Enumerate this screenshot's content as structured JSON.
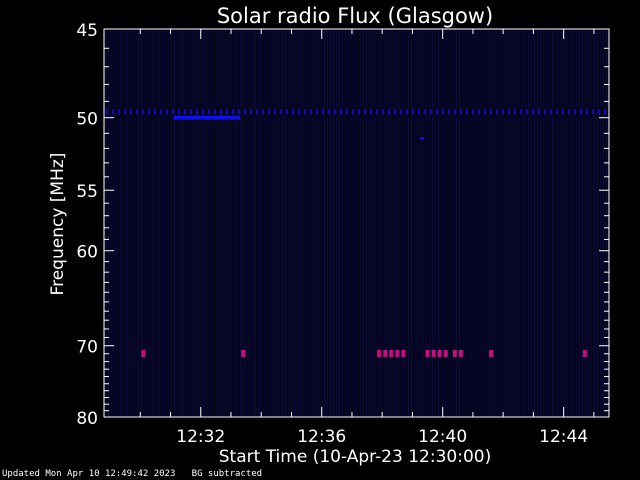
{
  "footer": {
    "updated": "Updated Mon Apr 10 12:49:42 2023",
    "note": "BG subtracted"
  },
  "colors": {
    "background": "#000000",
    "plot_bg": "#050522",
    "axis": "#ffffff",
    "blue_band": "#1010e8",
    "magenta_burst": "#c01080"
  },
  "chart_data": {
    "type": "heatmap",
    "title": "Solar radio Flux (Glasgow)",
    "xlabel": "Start Time (10-Apr-23 12:30:00)",
    "ylabel": "Frequency [MHz]",
    "x_unit": "minutes after 12:30:00",
    "xlim": [
      -1.2,
      15.5
    ],
    "ylim_mhz": [
      45,
      80
    ],
    "y_scale": "reciprocal",
    "x_ticks": [
      {
        "value": 2,
        "label": "12:32"
      },
      {
        "value": 6,
        "label": "12:36"
      },
      {
        "value": 10,
        "label": "12:40"
      },
      {
        "value": 14,
        "label": "12:44"
      }
    ],
    "y_ticks": [
      {
        "value": 45,
        "label": "45"
      },
      {
        "value": 50,
        "label": "50"
      },
      {
        "value": 55,
        "label": "55"
      },
      {
        "value": 60,
        "label": "60"
      },
      {
        "value": 70,
        "label": "70"
      },
      {
        "value": 80,
        "label": "80"
      }
    ],
    "y_minor_ticks": [
      46,
      47,
      48,
      49,
      51,
      52,
      53,
      54,
      56,
      57,
      58,
      59,
      61,
      62,
      63,
      64,
      65,
      66,
      67,
      68,
      69,
      71,
      72,
      73,
      74,
      75,
      76,
      77,
      78,
      79
    ],
    "features": [
      {
        "kind": "band",
        "freq_mhz": 50.0,
        "x_start": 1.1,
        "x_end": 3.3,
        "intensity": "strong"
      },
      {
        "kind": "band",
        "freq_mhz": 49.6,
        "x_start": -1.2,
        "x_end": 15.5,
        "intensity": "weak"
      },
      {
        "kind": "dot",
        "freq_mhz": 51.3,
        "x": 9.3,
        "intensity": "weak"
      }
    ],
    "bursts_70_9mhz": [
      0.1,
      3.4,
      7.9,
      8.1,
      8.3,
      8.5,
      8.7,
      9.5,
      9.7,
      9.9,
      10.1,
      10.4,
      10.6,
      11.6,
      14.7
    ]
  }
}
